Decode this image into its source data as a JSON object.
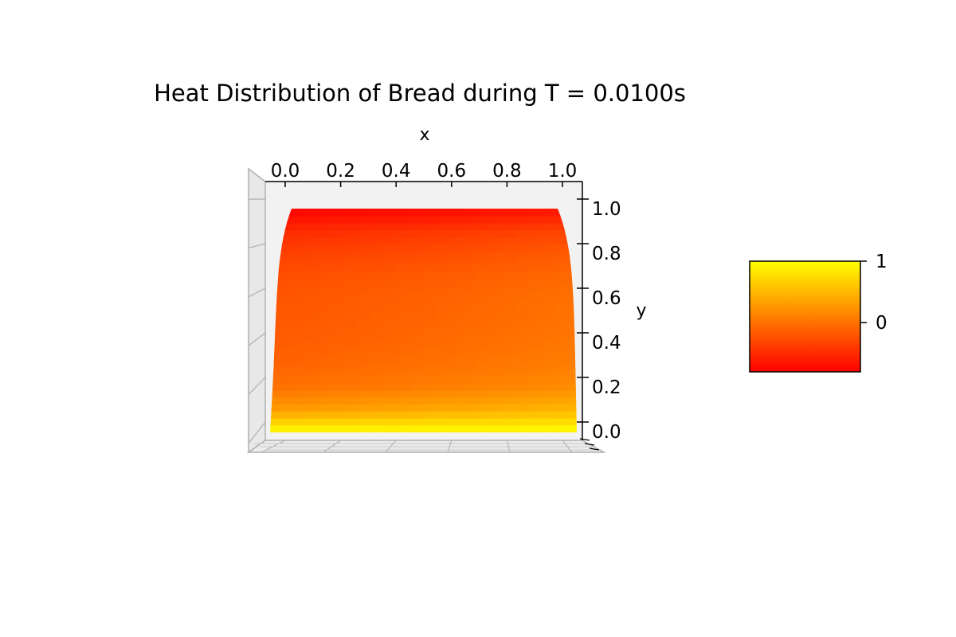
{
  "chart_data": {
    "type": "surface-3d",
    "title": "Heat Distribution of Bread during T = 0.0100s",
    "xlabel": "x",
    "ylabel": "y",
    "x_ticks": [
      "0.0",
      "0.2",
      "0.4",
      "0.6",
      "0.8",
      "1.0"
    ],
    "y_ticks": [
      "0.0",
      "0.2",
      "0.4",
      "0.6",
      "0.8",
      "1.0"
    ],
    "xlim": [
      0,
      1
    ],
    "ylim": [
      0,
      1
    ],
    "colormap": "autumn",
    "colormap_colors": [
      "#ff0000",
      "#ffff00"
    ],
    "colorbar": {
      "ticks": [
        "1",
        "0"
      ],
      "tick_values": [
        1,
        0
      ],
      "range": [
        -0.8,
        1
      ]
    },
    "surface": {
      "grid": [
        {
          "y": 1.0,
          "center_value": -0.8,
          "edge_value": -0.65
        },
        {
          "y": 0.9,
          "center_value": -0.5,
          "edge_value": -0.3
        },
        {
          "y": 0.8,
          "center_value": -0.35,
          "edge_value": -0.15
        },
        {
          "y": 0.7,
          "center_value": -0.25,
          "edge_value": -0.05
        },
        {
          "y": 0.6,
          "center_value": -0.2,
          "edge_value": 0.0
        },
        {
          "y": 0.5,
          "center_value": -0.18,
          "edge_value": 0.02
        },
        {
          "y": 0.4,
          "center_value": -0.15,
          "edge_value": 0.05
        },
        {
          "y": 0.3,
          "center_value": -0.1,
          "edge_value": 0.1
        },
        {
          "y": 0.2,
          "center_value": 0.0,
          "edge_value": 0.2
        },
        {
          "y": 0.1,
          "center_value": 0.3,
          "edge_value": 0.5
        },
        {
          "y": 0.0,
          "center_value": 1.0,
          "edge_value": 1.0
        }
      ]
    },
    "grid": true
  }
}
